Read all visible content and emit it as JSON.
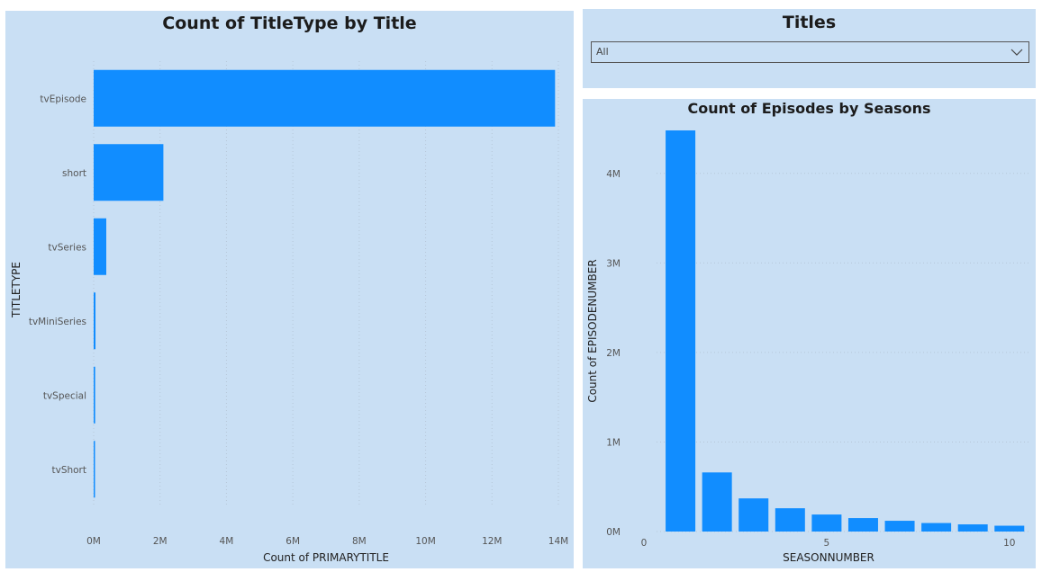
{
  "slicer": {
    "title": "Titles",
    "selected": "All"
  },
  "colors": {
    "bar": "#118dff",
    "panel": "#c9dff4",
    "grid": "#b6c7d8",
    "text": "#555555"
  },
  "chart_data": [
    {
      "type": "bar",
      "orientation": "horizontal",
      "title": "Count of TitleType by Title",
      "xlabel": "Count of PRIMARYTITLE",
      "ylabel": "TITLETYPE",
      "categories": [
        "tvEpisode",
        "short",
        "tvSeries",
        "tvMiniSeries",
        "tvSpecial",
        "tvShort"
      ],
      "values": [
        13900000,
        2100000,
        380000,
        55000,
        45000,
        10000
      ],
      "xlim": [
        0,
        14000000
      ],
      "xticks": [
        0,
        2000000,
        4000000,
        6000000,
        8000000,
        10000000,
        12000000,
        14000000
      ],
      "xtick_labels": [
        "0M",
        "2M",
        "4M",
        "6M",
        "8M",
        "10M",
        "12M",
        "14M"
      ],
      "grid": "vertical dotted"
    },
    {
      "type": "bar",
      "orientation": "vertical",
      "title": "Count of Episodes by Seasons",
      "xlabel": "SEASONNUMBER",
      "ylabel": "Count of EPISODENUMBER",
      "x": [
        1,
        2,
        3,
        4,
        5,
        6,
        7,
        8,
        9,
        10
      ],
      "values": [
        4480000,
        660000,
        370000,
        260000,
        190000,
        150000,
        120000,
        95000,
        80000,
        65000
      ],
      "xlim": [
        0,
        10.4
      ],
      "xticks": [
        0,
        5,
        10
      ],
      "xtick_labels": [
        "0",
        "5",
        "10"
      ],
      "ylim": [
        0,
        4500000
      ],
      "yticks": [
        0,
        1000000,
        2000000,
        3000000,
        4000000
      ],
      "ytick_labels": [
        "0M",
        "1M",
        "2M",
        "3M",
        "4M"
      ],
      "grid": "horizontal dotted"
    }
  ]
}
